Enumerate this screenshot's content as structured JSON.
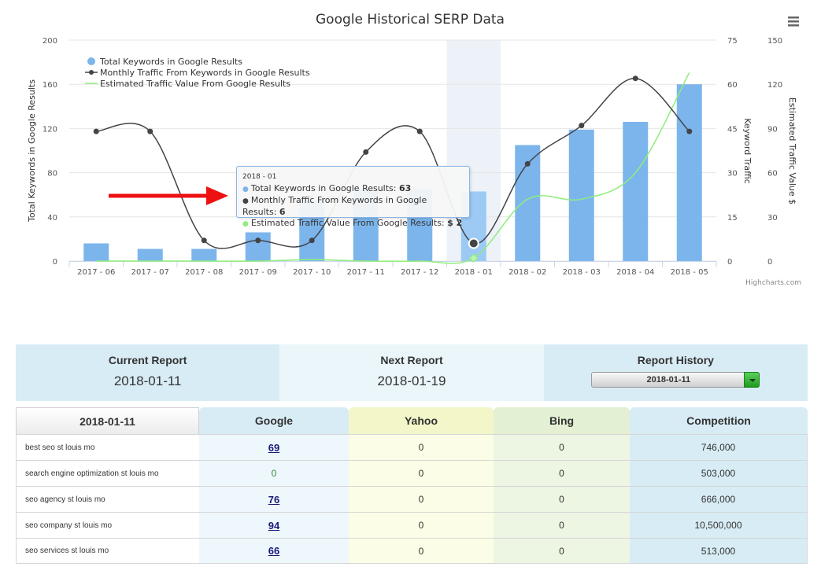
{
  "chart": {
    "title": "Google Historical SERP Data",
    "credits": "Highcharts.com",
    "tooltip": {
      "header": "2018 - 01",
      "lines": [
        {
          "label": "Total Keywords in Google Results: ",
          "value": "63",
          "color": "#7cb5ec"
        },
        {
          "label": "Monthly Traffic From Keywords in Google Results: ",
          "value": "6",
          "color": "#434348"
        },
        {
          "label": "Estimated Traffic Value From Google Results: ",
          "value": "$ 2",
          "color": "#90ed7d"
        }
      ]
    },
    "highlight_index": 7
  },
  "chart_data": {
    "type": "bar",
    "title": "Google Historical SERP Data",
    "categories": [
      "2017 - 06",
      "2017 - 07",
      "2017 - 08",
      "2017 - 09",
      "2017 - 10",
      "2017 - 11",
      "2017 - 12",
      "2018 - 01",
      "2018 - 02",
      "2018 - 03",
      "2018 - 04",
      "2018 - 05"
    ],
    "series": [
      {
        "name": "Total Keywords in Google Results",
        "type": "bar",
        "axis": "left",
        "color": "#7cb5ec",
        "values": [
          16,
          11,
          11,
          26,
          55,
          65,
          65,
          63,
          105,
          119,
          126,
          160
        ]
      },
      {
        "name": "Monthly Traffic From Keywords in Google Results",
        "type": "line",
        "axis": "right1",
        "color": "#434348",
        "values": [
          44,
          44,
          7,
          7,
          7,
          37,
          44,
          6,
          33,
          46,
          62,
          44
        ]
      },
      {
        "name": "Estimated Traffic Value From Google Results",
        "type": "line",
        "axis": "right2",
        "color": "#90ed7d",
        "values": [
          0,
          0,
          0,
          0,
          1,
          0,
          0,
          2,
          42,
          42,
          60,
          128
        ]
      }
    ],
    "axes": {
      "left": {
        "title": "Total Keywords in Google Results",
        "range": [
          0,
          200
        ],
        "ticks": [
          0,
          40,
          80,
          120,
          160,
          200
        ]
      },
      "right1": {
        "title": "Keyword Traffic",
        "range": [
          0,
          75
        ],
        "ticks": [
          0,
          15,
          30,
          45,
          60,
          75
        ]
      },
      "right2": {
        "title": "Estimated Traffic Value $",
        "range": [
          0,
          150
        ],
        "ticks": [
          0,
          30,
          60,
          90,
          120,
          150
        ]
      }
    },
    "legend_position": "top-left"
  },
  "report": {
    "current_label": "Current Report",
    "current_value": "2018-01-11",
    "next_label": "Next Report",
    "next_value": "2018-01-19",
    "history_label": "Report History",
    "history_selected": "2018-01-11"
  },
  "table": {
    "headers": {
      "date": "2018-01-11",
      "google": "Google",
      "yahoo": "Yahoo",
      "bing": "Bing",
      "competition": "Competition"
    },
    "rows": [
      {
        "keyword": "best seo st louis mo",
        "google": "69",
        "yahoo": "0",
        "bing": "0",
        "competition": "746,000"
      },
      {
        "keyword": "search engine optimization st louis mo",
        "google": "0",
        "yahoo": "0",
        "bing": "0",
        "competition": "503,000"
      },
      {
        "keyword": "seo agency st louis mo",
        "google": "76",
        "yahoo": "0",
        "bing": "0",
        "competition": "666,000"
      },
      {
        "keyword": "seo company st louis mo",
        "google": "94",
        "yahoo": "0",
        "bing": "0",
        "competition": "10,500,000"
      },
      {
        "keyword": "seo services st louis mo",
        "google": "66",
        "yahoo": "0",
        "bing": "0",
        "competition": "513,000"
      }
    ]
  }
}
